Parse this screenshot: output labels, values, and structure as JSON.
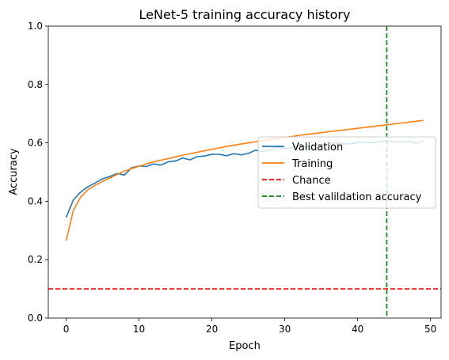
{
  "chart_data": {
    "type": "line",
    "title": "LeNet-5 training accuracy history",
    "xlabel": "Epoch",
    "ylabel": "Accuracy",
    "xlim": [
      -2.45,
      51.45
    ],
    "ylim": [
      0,
      1
    ],
    "xticks": [
      0,
      10,
      20,
      30,
      40,
      50
    ],
    "yticks": [
      0.0,
      0.2,
      0.4,
      0.6,
      0.8,
      1.0
    ],
    "xtick_labels": [
      "0",
      "10",
      "20",
      "30",
      "40",
      "50"
    ],
    "ytick_labels": [
      "0.0",
      "0.2",
      "0.4",
      "0.6",
      "0.8",
      "1.0"
    ],
    "grid": false,
    "legend_position": "center-right",
    "x": [
      0,
      1,
      2,
      3,
      4,
      5,
      6,
      7,
      8,
      9,
      10,
      11,
      12,
      13,
      14,
      15,
      16,
      17,
      18,
      19,
      20,
      21,
      22,
      23,
      24,
      25,
      26,
      27,
      28,
      29,
      30,
      31,
      32,
      33,
      34,
      35,
      36,
      37,
      38,
      39,
      40,
      41,
      42,
      43,
      44,
      45,
      46,
      47,
      48,
      49
    ],
    "series": [
      {
        "name": "Validation",
        "color": "#1f77b4",
        "style": "solid",
        "values": [
          0.345,
          0.405,
          0.432,
          0.45,
          0.463,
          0.477,
          0.485,
          0.495,
          0.49,
          0.515,
          0.521,
          0.519,
          0.528,
          0.524,
          0.535,
          0.538,
          0.548,
          0.542,
          0.553,
          0.555,
          0.561,
          0.561,
          0.556,
          0.563,
          0.559,
          0.564,
          0.575,
          0.57,
          0.577,
          0.585,
          0.58,
          0.585,
          0.59,
          0.585,
          0.591,
          0.594,
          0.595,
          0.6,
          0.596,
          0.598,
          0.601,
          0.603,
          0.6,
          0.605,
          0.607,
          0.604,
          0.603,
          0.606,
          0.599,
          0.607
        ]
      },
      {
        "name": "Training",
        "color": "#ff7f0e",
        "style": "solid",
        "values": [
          0.265,
          0.37,
          0.415,
          0.44,
          0.455,
          0.468,
          0.48,
          0.492,
          0.503,
          0.512,
          0.52,
          0.528,
          0.535,
          0.541,
          0.546,
          0.552,
          0.558,
          0.563,
          0.568,
          0.573,
          0.578,
          0.583,
          0.588,
          0.592,
          0.596,
          0.6,
          0.604,
          0.608,
          0.612,
          0.615,
          0.619,
          0.622,
          0.626,
          0.629,
          0.632,
          0.635,
          0.638,
          0.641,
          0.644,
          0.647,
          0.65,
          0.653,
          0.656,
          0.659,
          0.662,
          0.665,
          0.668,
          0.671,
          0.674,
          0.677
        ]
      }
    ],
    "hlines": [
      {
        "name": "Chance",
        "y": 0.1,
        "color": "#ff0000",
        "style": "dashed"
      }
    ],
    "vlines": [
      {
        "name": "Best valildation accuracy",
        "x": 44,
        "color": "#008000",
        "style": "dashed"
      }
    ]
  }
}
